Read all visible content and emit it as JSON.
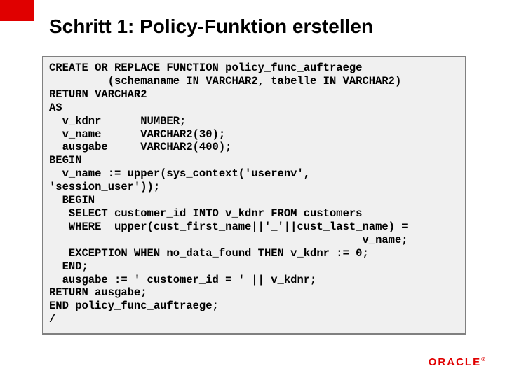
{
  "slide": {
    "accent_color": "#e00000",
    "background_color": "#ffffff",
    "code_bg_color": "#f0f0f0",
    "code_border_color": "#808080",
    "title": "Schritt 1:  Policy-Funktion erstellen",
    "title_fontsize": 28,
    "code_fontsize": 15.5,
    "code_fontfamily": "Courier New",
    "code_lines": [
      "CREATE OR REPLACE FUNCTION policy_func_auftraege",
      "         (schemaname IN VARCHAR2, tabelle IN VARCHAR2)",
      "RETURN VARCHAR2",
      "AS",
      "  v_kdnr      NUMBER;",
      "  v_name      VARCHAR2(30);",
      "  ausgabe     VARCHAR2(400);",
      "BEGIN",
      "  v_name := upper(sys_context('userenv',",
      "'session_user'));",
      "  BEGIN",
      "   SELECT customer_id INTO v_kdnr FROM customers",
      "   WHERE  upper(cust_first_name||'_'||cust_last_name) =",
      "                                                v_name;",
      "   EXCEPTION WHEN no_data_found THEN v_kdnr := 0;",
      "  END;",
      "  ausgabe := ' customer_id = ' || v_kdnr;",
      "RETURN ausgabe;",
      "END policy_func_auftraege;",
      "/"
    ],
    "logo_text": "ORACLE"
  }
}
